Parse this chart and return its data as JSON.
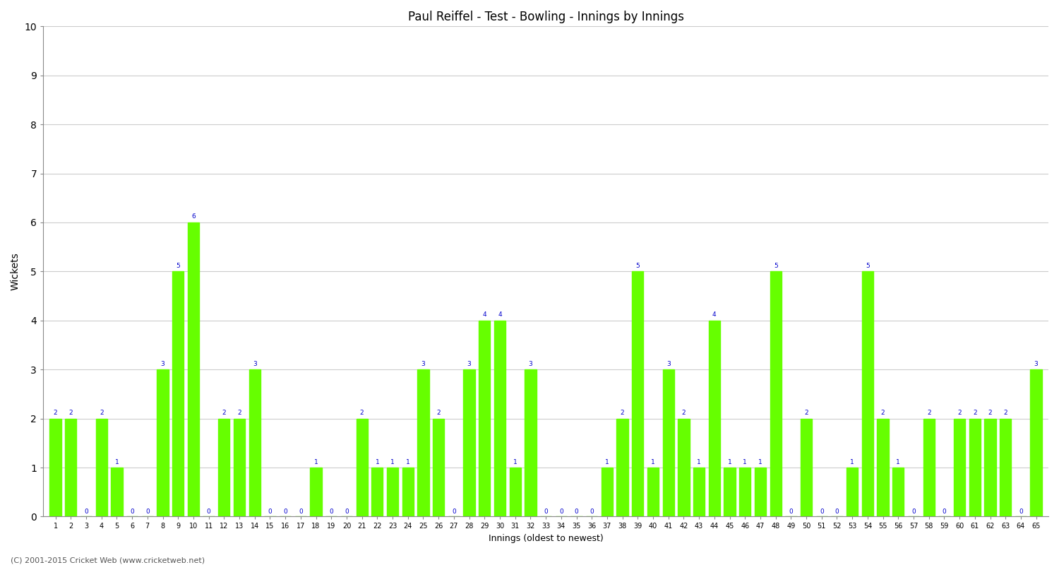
{
  "title": "Paul Reiffel - Test - Bowling - Innings by Innings",
  "xlabel": "Innings (oldest to newest)",
  "ylabel": "Wickets",
  "ylim": [
    0,
    10
  ],
  "bar_color": "#66ff00",
  "label_color": "#0000cc",
  "background_color": "#ffffff",
  "grid_color": "#cccccc",
  "wickets": [
    2,
    2,
    0,
    2,
    1,
    0,
    0,
    3,
    5,
    6,
    0,
    2,
    2,
    3,
    0,
    0,
    0,
    1,
    0,
    0,
    2,
    1,
    1,
    1,
    3,
    2,
    0,
    3,
    4,
    4,
    1,
    3,
    0,
    0,
    0,
    0,
    1,
    2,
    5,
    1,
    3,
    2,
    1,
    4,
    1,
    1,
    1,
    5,
    0,
    2,
    0,
    0,
    1,
    5,
    2,
    1,
    0,
    2,
    0,
    2,
    2,
    2,
    2,
    0,
    3
  ],
  "footer": "(C) 2001-2015 Cricket Web (www.cricketweb.net)"
}
